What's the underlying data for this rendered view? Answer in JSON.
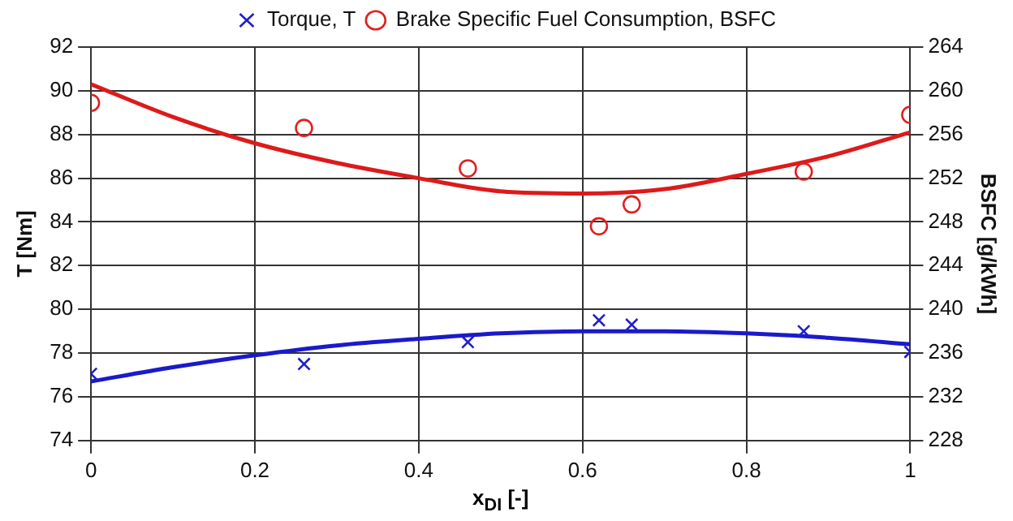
{
  "chart_data": {
    "type": "scatter",
    "xlabel": "x$_{DI}$ [-]",
    "ylabel": "T [Nm]",
    "y2label": "BSFC [g/kWh]",
    "xlim": [
      0,
      1
    ],
    "xticks": [
      0,
      0.2,
      0.4,
      0.6,
      0.8,
      1
    ],
    "ylim": [
      74,
      92
    ],
    "yticks": [
      74,
      76,
      78,
      80,
      82,
      84,
      86,
      88,
      90,
      92
    ],
    "y2lim": [
      228,
      264
    ],
    "y2ticks": [
      228,
      232,
      236,
      240,
      244,
      248,
      252,
      256,
      260,
      264
    ],
    "grid": true,
    "legend": "top",
    "series": [
      {
        "name": "Torque, T",
        "marker": "cross",
        "color": "#1f1fcc",
        "x": [
          0,
          0.26,
          0.46,
          0.62,
          0.66,
          0.87,
          1
        ],
        "values": [
          77.05,
          77.5,
          78.5,
          79.5,
          79.3,
          79.0,
          78.05
        ]
      },
      {
        "name": "Brake Specific Fuel Consumption, BSFC",
        "marker": "circle",
        "axis": "y2",
        "color": "#e02020",
        "x": [
          0,
          0.26,
          0.46,
          0.62,
          0.66,
          0.87,
          1
        ],
        "values": [
          258.9,
          256.6,
          252.9,
          247.6,
          249.6,
          252.6,
          257.8
        ]
      },
      {
        "type": "line",
        "marker": "none",
        "color": "#1a1acc",
        "x": [
          0,
          0.1,
          0.2,
          0.3,
          0.4,
          0.5,
          0.6,
          0.7,
          0.8,
          0.9,
          1
        ],
        "values": [
          76.7,
          77.35,
          77.9,
          78.35,
          78.65,
          78.9,
          79.0,
          79.0,
          78.9,
          78.7,
          78.4
        ]
      },
      {
        "type": "line",
        "marker": "none",
        "axis": "y2",
        "color": "#dd1a1a",
        "x": [
          0,
          0.1,
          0.2,
          0.3,
          0.4,
          0.5,
          0.6,
          0.7,
          0.8,
          0.9,
          1
        ],
        "values": [
          260.6,
          257.6,
          255.2,
          253.4,
          252.0,
          250.8,
          250.6,
          251.0,
          252.4,
          254.0,
          256.2
        ]
      }
    ]
  }
}
